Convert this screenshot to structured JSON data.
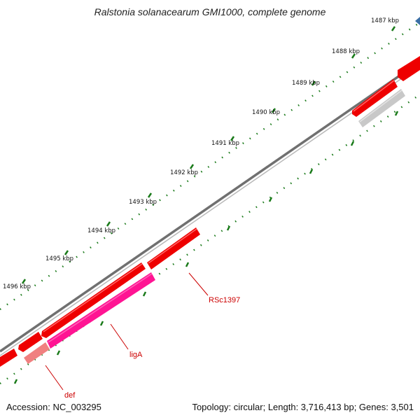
{
  "title": "Ralstonia solanacearum GMI1000, complete genome",
  "footer": {
    "accession": "Accession: NC_003295",
    "summary": "Topology: circular; Length: 3,716,413 bp; Genes: 3,501"
  },
  "ruler": {
    "labels": [
      "1487 kbp",
      "1488 kbp",
      "1489 kbp",
      "1490 kbp",
      "1491 kbp",
      "1492 kbp",
      "1493 kbp",
      "1494 kbp",
      "1495 kbp",
      "1496 kbp"
    ]
  },
  "genes": [
    {
      "name": "RSc1397"
    },
    {
      "name": "ligA"
    },
    {
      "name": "def"
    }
  ],
  "colors": {
    "backbone": "#7a7a7a",
    "forward_gene": "#ee0000",
    "ligA": "#ff1493",
    "def": "#f08080",
    "grey_feature": "#c8c8c8",
    "ticks": "#1a7a1a",
    "label_red": "#cc0000",
    "marker": "#3a6ea5"
  }
}
